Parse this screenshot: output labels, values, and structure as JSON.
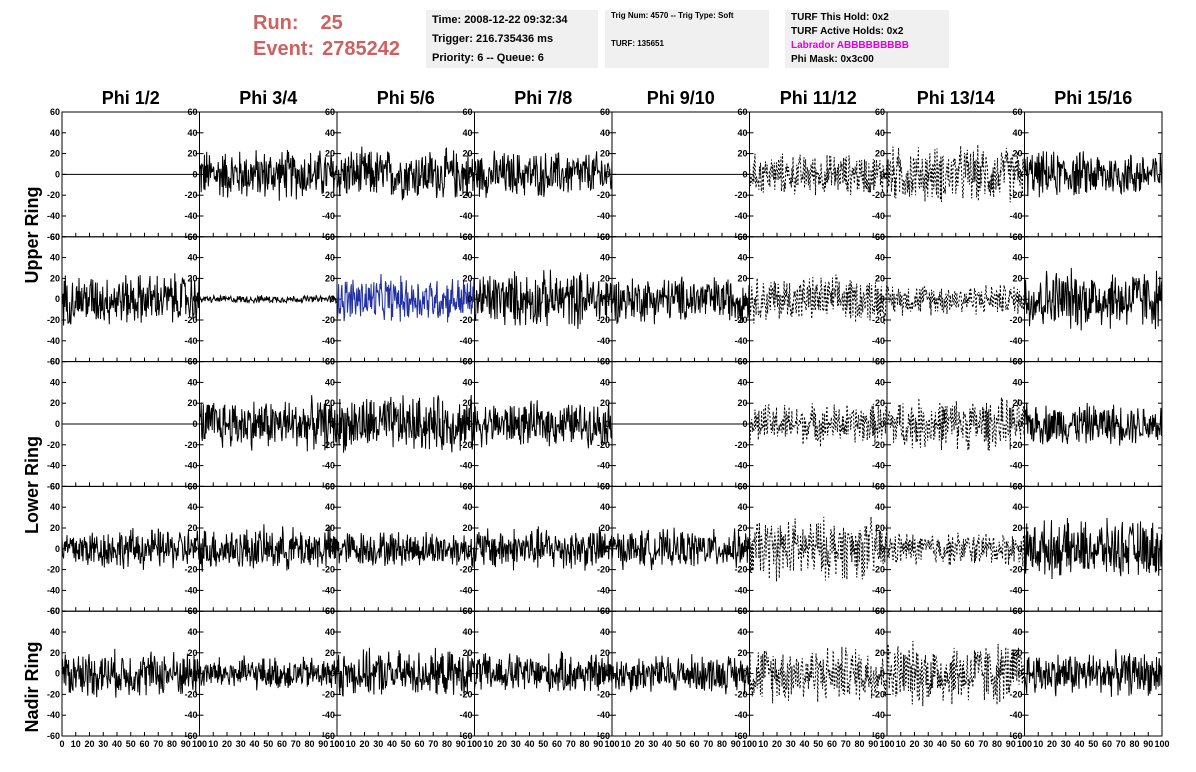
{
  "header": {
    "run_label": "Run:",
    "run_value": "25",
    "event_label": "Event:",
    "event_value": "2785242"
  },
  "info_time": {
    "time": "Time: 2008-12-22 09:32:34",
    "trigger": "Trigger: 216.735436 ms",
    "priority": "Priority: 6 -- Queue: 6"
  },
  "info_trig": {
    "trig": "Trig Num: 4570 -- Trig Type: Soft",
    "turf": "TURF: 135651"
  },
  "info_turf": {
    "this_hold": "TURF This Hold: 0x2",
    "active_holds": "TURF Active Holds: 0x2",
    "labrador": "Labrador ABBBBBBBBB",
    "phi_mask": "Phi Mask: 0x3c00"
  },
  "colors": {
    "labrador_magenta": "#e000e0",
    "run_red": "#d06060",
    "highlight_blue": "#2030a0",
    "panel_bg": "#f0f0f0"
  },
  "phi_labels": [
    "Phi 1/2",
    "Phi 3/4",
    "Phi 5/6",
    "Phi 7/8",
    "Phi 9/10",
    "Phi 11/12",
    "Phi 13/14",
    "Phi 15/16"
  ],
  "ring_labels": [
    "Upper Ring",
    "Lower Ring",
    "Nadir Ring"
  ],
  "chart_data": {
    "type": "line",
    "xlim": [
      0,
      100
    ],
    "ylim": [
      -60,
      60
    ],
    "x_ticks": [
      0,
      10,
      20,
      30,
      40,
      50,
      60,
      70,
      80,
      90,
      100
    ],
    "y_ticks": [
      -60,
      -40,
      -20,
      0,
      20,
      40,
      60
    ],
    "rows": 5,
    "cols": 8,
    "panels": [
      [
        {
          "style": "flat",
          "amp": 0
        },
        {
          "style": "solid",
          "amp": 20
        },
        {
          "style": "solid",
          "amp": 20
        },
        {
          "style": "solid",
          "amp": 18
        },
        {
          "style": "flat",
          "amp": 0
        },
        {
          "style": "dotted",
          "amp": 16
        },
        {
          "style": "dotted",
          "amp": 22
        },
        {
          "style": "solid",
          "amp": 18
        }
      ],
      [
        {
          "style": "solid",
          "amp": 20
        },
        {
          "style": "solid",
          "amp": 3
        },
        {
          "style": "blue",
          "amp": 18
        },
        {
          "style": "solid",
          "amp": 22
        },
        {
          "style": "solid",
          "amp": 18
        },
        {
          "style": "dotted",
          "amp": 18
        },
        {
          "style": "dotted",
          "amp": 12
        },
        {
          "style": "solid",
          "amp": 24
        }
      ],
      [
        {
          "style": "flat",
          "amp": 0
        },
        {
          "style": "solid",
          "amp": 20
        },
        {
          "style": "solid",
          "amp": 22
        },
        {
          "style": "solid",
          "amp": 17
        },
        {
          "style": "flat",
          "amp": 0
        },
        {
          "style": "dotted",
          "amp": 16
        },
        {
          "style": "dotted",
          "amp": 20
        },
        {
          "style": "solid",
          "amp": 16
        }
      ],
      [
        {
          "style": "solid",
          "amp": 16
        },
        {
          "style": "solid",
          "amp": 17
        },
        {
          "style": "solid",
          "amp": 14
        },
        {
          "style": "solid",
          "amp": 17
        },
        {
          "style": "solid",
          "amp": 15
        },
        {
          "style": "dotted",
          "amp": 24
        },
        {
          "style": "dotted",
          "amp": 13
        },
        {
          "style": "solid",
          "amp": 22
        }
      ],
      [
        {
          "style": "solid",
          "amp": 18
        },
        {
          "style": "solid",
          "amp": 13
        },
        {
          "style": "solid",
          "amp": 18
        },
        {
          "style": "solid",
          "amp": 16
        },
        {
          "style": "solid",
          "amp": 15
        },
        {
          "style": "dotted",
          "amp": 22
        },
        {
          "style": "dotted",
          "amp": 25
        },
        {
          "style": "solid",
          "amp": 17
        }
      ]
    ]
  }
}
